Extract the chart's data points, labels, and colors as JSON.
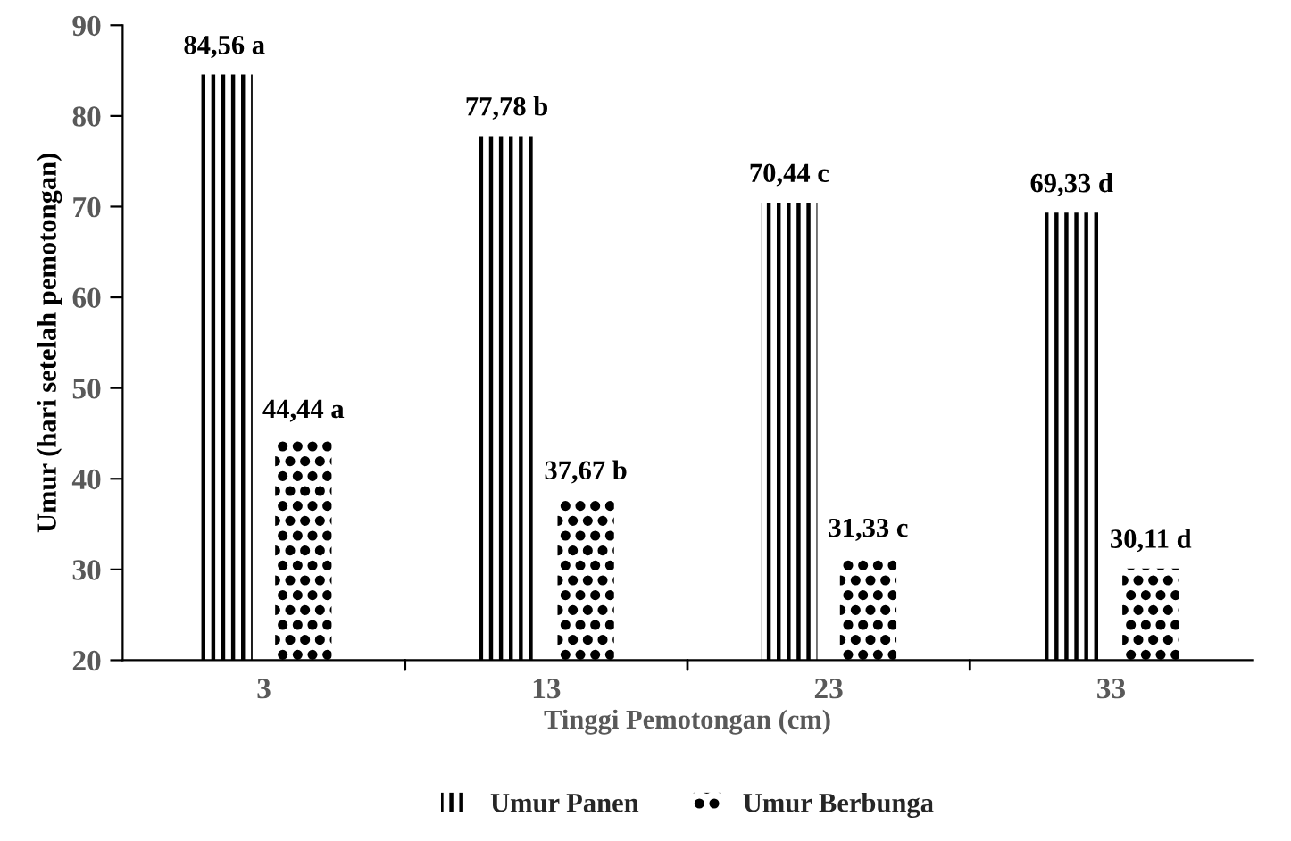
{
  "chart_data": {
    "type": "bar",
    "xlabel": "Tinggi Pemotongan (cm)",
    "ylabel": "Umur (hari setelah pemotongan)",
    "categories": [
      "3",
      "13",
      "23",
      "33"
    ],
    "series": [
      {
        "name": "Umur Panen",
        "color": "#000000",
        "values": [
          84.56,
          77.78,
          70.44,
          69.33
        ],
        "value_labels": [
          "84,56 a",
          "77,78 b",
          "70,44 c",
          "69,33 d"
        ]
      },
      {
        "name": "Umur Berbunga",
        "color": "#000000",
        "values": [
          44.44,
          37.67,
          31.33,
          30.11
        ],
        "value_labels": [
          "44,44 a",
          "37,67 b",
          "31,33 c",
          "30,11 d"
        ]
      }
    ],
    "ylim": [
      20,
      90
    ],
    "yticks": [
      20,
      30,
      40,
      50,
      60,
      70,
      80,
      90
    ],
    "grid": false,
    "legend": "bottom"
  }
}
